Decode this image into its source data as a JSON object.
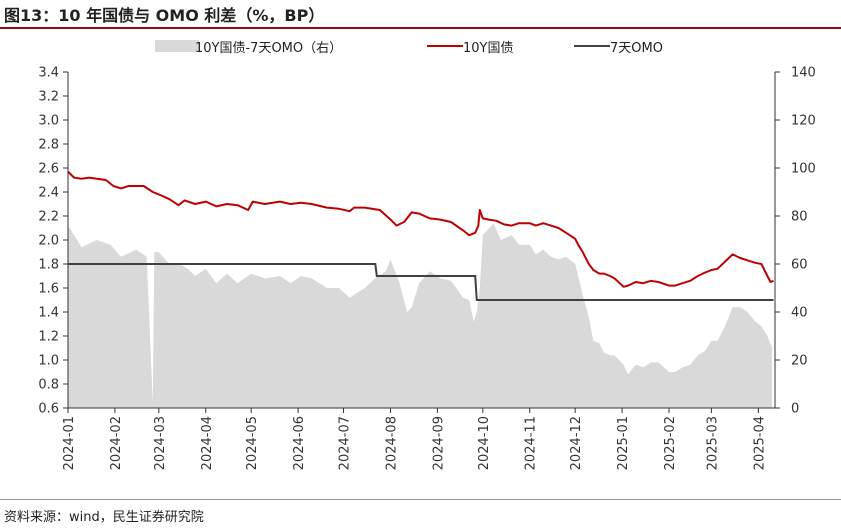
{
  "title": "图13：10 年国债与 OMO 利差（%，BP）",
  "source": "资料来源：wind，民生证券研究院",
  "colors": {
    "spread": "#d9d9d9",
    "bond": "#c00000",
    "omo": "#404040",
    "title_rule": "#8a0f14"
  },
  "chart_data": {
    "type": "line",
    "legend_position": "top",
    "grid": false,
    "x_ticks": [
      "2024-01",
      "2024-02",
      "2024-03",
      "2024-04",
      "2024-05",
      "2024-06",
      "2024-07",
      "2024-08",
      "2024-09",
      "2024-10",
      "2024-11",
      "2024-12",
      "2025-01",
      "2025-02",
      "2025-03",
      "2025-04"
    ],
    "y_left": {
      "min": 0.6,
      "max": 3.4,
      "ticks": [
        "3.4",
        "3.2",
        "3.0",
        "2.8",
        "2.6",
        "2.4",
        "2.2",
        "2.0",
        "1.8",
        "1.6",
        "1.4",
        "1.2",
        "1.0",
        "0.8",
        "0.6"
      ]
    },
    "y_right": {
      "min": 0,
      "max": 140,
      "ticks": [
        "140",
        "120",
        "100",
        "80",
        "60",
        "40",
        "20",
        "0"
      ]
    },
    "series": [
      {
        "name": "10Y国债-7天OMO（右）",
        "type": "area",
        "axis": "right",
        "points": [
          [
            "2024-01-01",
            76
          ],
          [
            "2024-01-05",
            72
          ],
          [
            "2024-01-10",
            67
          ],
          [
            "2024-01-20",
            70
          ],
          [
            "2024-01-29",
            68
          ],
          [
            "2024-02-05",
            63
          ],
          [
            "2024-02-15",
            66
          ],
          [
            "2024-02-22",
            63
          ],
          [
            "2024-02-26",
            2
          ],
          [
            "2024-02-27",
            65
          ],
          [
            "2024-03-01",
            65
          ],
          [
            "2024-03-08",
            60
          ],
          [
            "2024-03-15",
            60
          ],
          [
            "2024-03-20",
            58
          ],
          [
            "2024-03-25",
            55
          ],
          [
            "2024-04-01",
            58
          ],
          [
            "2024-04-08",
            52
          ],
          [
            "2024-04-15",
            56
          ],
          [
            "2024-04-22",
            52
          ],
          [
            "2024-05-01",
            56
          ],
          [
            "2024-05-10",
            54
          ],
          [
            "2024-05-20",
            55
          ],
          [
            "2024-05-27",
            52
          ],
          [
            "2024-06-03",
            55
          ],
          [
            "2024-06-10",
            54
          ],
          [
            "2024-06-20",
            50
          ],
          [
            "2024-06-28",
            50
          ],
          [
            "2024-07-05",
            46
          ],
          [
            "2024-07-15",
            50
          ],
          [
            "2024-07-22",
            54
          ],
          [
            "2024-07-29",
            57
          ],
          [
            "2024-08-01",
            62
          ],
          [
            "2024-08-07",
            52
          ],
          [
            "2024-08-12",
            40
          ],
          [
            "2024-08-15",
            42
          ],
          [
            "2024-08-20",
            52
          ],
          [
            "2024-08-27",
            57
          ],
          [
            "2024-09-03",
            54
          ],
          [
            "2024-09-10",
            53
          ],
          [
            "2024-09-18",
            46
          ],
          [
            "2024-09-22",
            45
          ],
          [
            "2024-09-25",
            36
          ],
          [
            "2024-09-27",
            40
          ],
          [
            "2024-09-29",
            50
          ],
          [
            "2024-10-01",
            72
          ],
          [
            "2024-10-08",
            77
          ],
          [
            "2024-10-13",
            70
          ],
          [
            "2024-10-20",
            72
          ],
          [
            "2024-10-25",
            68
          ],
          [
            "2024-11-01",
            68
          ],
          [
            "2024-11-05",
            64
          ],
          [
            "2024-11-10",
            66
          ],
          [
            "2024-11-15",
            63
          ],
          [
            "2024-11-20",
            62
          ],
          [
            "2024-11-25",
            63
          ],
          [
            "2024-12-01",
            60
          ],
          [
            "2024-12-03",
            55
          ],
          [
            "2024-12-06",
            47
          ],
          [
            "2024-12-10",
            38
          ],
          [
            "2024-12-13",
            28
          ],
          [
            "2024-12-17",
            27
          ],
          [
            "2024-12-20",
            23
          ],
          [
            "2024-12-24",
            22
          ],
          [
            "2024-12-27",
            22
          ],
          [
            "2025-01-02",
            18
          ],
          [
            "2025-01-05",
            14
          ],
          [
            "2025-01-10",
            18
          ],
          [
            "2025-01-15",
            17
          ],
          [
            "2025-01-20",
            19
          ],
          [
            "2025-01-25",
            19
          ],
          [
            "2025-02-01",
            15
          ],
          [
            "2025-02-05",
            15
          ],
          [
            "2025-02-10",
            17
          ],
          [
            "2025-02-15",
            18
          ],
          [
            "2025-02-20",
            22
          ],
          [
            "2025-02-25",
            24
          ],
          [
            "2025-03-01",
            28
          ],
          [
            "2025-03-05",
            28
          ],
          [
            "2025-03-10",
            34
          ],
          [
            "2025-03-15",
            42
          ],
          [
            "2025-03-20",
            42
          ],
          [
            "2025-03-25",
            40
          ],
          [
            "2025-03-30",
            36
          ],
          [
            "2025-04-03",
            34
          ],
          [
            "2025-04-07",
            30
          ],
          [
            "2025-04-10",
            25
          ]
        ]
      },
      {
        "name": "10Y国债",
        "type": "line",
        "axis": "left",
        "points": [
          [
            "2024-01-01",
            2.57
          ],
          [
            "2024-01-05",
            2.52
          ],
          [
            "2024-01-10",
            2.51
          ],
          [
            "2024-01-15",
            2.52
          ],
          [
            "2024-01-20",
            2.51
          ],
          [
            "2024-01-26",
            2.5
          ],
          [
            "2024-01-31",
            2.45
          ],
          [
            "2024-02-05",
            2.43
          ],
          [
            "2024-02-10",
            2.45
          ],
          [
            "2024-02-20",
            2.45
          ],
          [
            "2024-02-26",
            2.4
          ],
          [
            "2024-03-01",
            2.38
          ],
          [
            "2024-03-08",
            2.34
          ],
          [
            "2024-03-14",
            2.29
          ],
          [
            "2024-03-18",
            2.33
          ],
          [
            "2024-03-25",
            2.3
          ],
          [
            "2024-04-01",
            2.32
          ],
          [
            "2024-04-08",
            2.28
          ],
          [
            "2024-04-15",
            2.3
          ],
          [
            "2024-04-22",
            2.29
          ],
          [
            "2024-04-29",
            2.25
          ],
          [
            "2024-05-02",
            2.32
          ],
          [
            "2024-05-10",
            2.3
          ],
          [
            "2024-05-20",
            2.32
          ],
          [
            "2024-05-27",
            2.3
          ],
          [
            "2024-06-03",
            2.31
          ],
          [
            "2024-06-10",
            2.3
          ],
          [
            "2024-06-20",
            2.27
          ],
          [
            "2024-06-28",
            2.26
          ],
          [
            "2024-07-05",
            2.24
          ],
          [
            "2024-07-08",
            2.27
          ],
          [
            "2024-07-15",
            2.27
          ],
          [
            "2024-07-25",
            2.25
          ],
          [
            "2024-08-01",
            2.17
          ],
          [
            "2024-08-05",
            2.12
          ],
          [
            "2024-08-10",
            2.15
          ],
          [
            "2024-08-15",
            2.23
          ],
          [
            "2024-08-20",
            2.22
          ],
          [
            "2024-08-27",
            2.18
          ],
          [
            "2024-09-03",
            2.17
          ],
          [
            "2024-09-10",
            2.15
          ],
          [
            "2024-09-18",
            2.08
          ],
          [
            "2024-09-22",
            2.04
          ],
          [
            "2024-09-26",
            2.06
          ],
          [
            "2024-09-28",
            2.12
          ],
          [
            "2024-09-29",
            2.25
          ],
          [
            "2024-10-01",
            2.18
          ],
          [
            "2024-10-05",
            2.17
          ],
          [
            "2024-10-10",
            2.16
          ],
          [
            "2024-10-15",
            2.13
          ],
          [
            "2024-10-20",
            2.12
          ],
          [
            "2024-10-25",
            2.14
          ],
          [
            "2024-11-01",
            2.14
          ],
          [
            "2024-11-05",
            2.12
          ],
          [
            "2024-11-10",
            2.14
          ],
          [
            "2024-11-15",
            2.12
          ],
          [
            "2024-11-20",
            2.1
          ],
          [
            "2024-11-25",
            2.06
          ],
          [
            "2024-12-01",
            2.01
          ],
          [
            "2024-12-03",
            1.96
          ],
          [
            "2024-12-06",
            1.9
          ],
          [
            "2024-12-10",
            1.8
          ],
          [
            "2024-12-13",
            1.75
          ],
          [
            "2024-12-17",
            1.72
          ],
          [
            "2024-12-20",
            1.72
          ],
          [
            "2024-12-24",
            1.7
          ],
          [
            "2024-12-27",
            1.68
          ],
          [
            "2025-01-02",
            1.61
          ],
          [
            "2025-01-05",
            1.62
          ],
          [
            "2025-01-10",
            1.65
          ],
          [
            "2025-01-15",
            1.64
          ],
          [
            "2025-01-20",
            1.66
          ],
          [
            "2025-01-25",
            1.65
          ],
          [
            "2025-02-01",
            1.62
          ],
          [
            "2025-02-05",
            1.62
          ],
          [
            "2025-02-10",
            1.64
          ],
          [
            "2025-02-15",
            1.66
          ],
          [
            "2025-02-20",
            1.7
          ],
          [
            "2025-02-25",
            1.73
          ],
          [
            "2025-03-01",
            1.75
          ],
          [
            "2025-03-05",
            1.76
          ],
          [
            "2025-03-10",
            1.82
          ],
          [
            "2025-03-15",
            1.88
          ],
          [
            "2025-03-20",
            1.85
          ],
          [
            "2025-03-25",
            1.83
          ],
          [
            "2025-03-30",
            1.81
          ],
          [
            "2025-04-03",
            1.8
          ],
          [
            "2025-04-07",
            1.7
          ],
          [
            "2025-04-09",
            1.65
          ],
          [
            "2025-04-11",
            1.66
          ]
        ]
      },
      {
        "name": "7天OMO",
        "type": "line",
        "axis": "left",
        "points": [
          [
            "2024-01-01",
            1.8
          ],
          [
            "2024-07-22",
            1.8
          ],
          [
            "2024-07-23",
            1.7
          ],
          [
            "2024-09-26",
            1.7
          ],
          [
            "2024-09-27",
            1.5
          ],
          [
            "2025-04-11",
            1.5
          ]
        ]
      }
    ]
  }
}
